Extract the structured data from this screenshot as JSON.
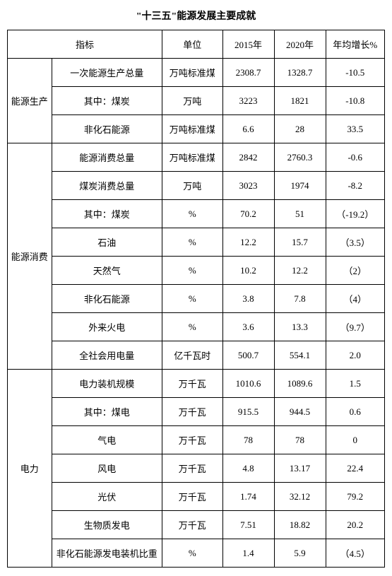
{
  "title": "\"十三五\"能源发展主要成就",
  "headers": {
    "indicator": "指标",
    "unit": "单位",
    "y2015": "2015年",
    "y2020": "2020年",
    "growth": "年均增长%"
  },
  "groups": [
    {
      "category": "能源生产",
      "rows": [
        {
          "indicator": "一次能源生产总量",
          "unit": "万吨标准煤",
          "y2015": "2308.7",
          "y2020": "1328.7",
          "growth": "-10.5"
        },
        {
          "indicator": "其中：煤炭",
          "unit": "万吨",
          "y2015": "3223",
          "y2020": "1821",
          "growth": "-10.8"
        },
        {
          "indicator": "非化石能源",
          "unit": "万吨标准煤",
          "y2015": "6.6",
          "y2020": "28",
          "growth": "33.5"
        }
      ]
    },
    {
      "category": "能源消费",
      "rows": [
        {
          "indicator": "能源消费总量",
          "unit": "万吨标准煤",
          "y2015": "2842",
          "y2020": "2760.3",
          "growth": "-0.6"
        },
        {
          "indicator": "煤炭消费总量",
          "unit": "万吨",
          "y2015": "3023",
          "y2020": "1974",
          "growth": "-8.2"
        },
        {
          "indicator": "其中：煤炭",
          "unit": "%",
          "y2015": "70.2",
          "y2020": "51",
          "growth": "（-19.2）"
        },
        {
          "indicator": "石油",
          "unit": "%",
          "y2015": "12.2",
          "y2020": "15.7",
          "growth": "（3.5）"
        },
        {
          "indicator": "天然气",
          "unit": "%",
          "y2015": "10.2",
          "y2020": "12.2",
          "growth": "（2）"
        },
        {
          "indicator": "非化石能源",
          "unit": "%",
          "y2015": "3.8",
          "y2020": "7.8",
          "growth": "（4）"
        },
        {
          "indicator": "外来火电",
          "unit": "%",
          "y2015": "3.6",
          "y2020": "13.3",
          "growth": "（9.7）"
        },
        {
          "indicator": "全社会用电量",
          "unit": "亿千瓦时",
          "y2015": "500.7",
          "y2020": "554.1",
          "growth": "2.0"
        }
      ]
    },
    {
      "category": "电力",
      "rows": [
        {
          "indicator": "电力装机规模",
          "unit": "万千瓦",
          "y2015": "1010.6",
          "y2020": "1089.6",
          "growth": "1.5"
        },
        {
          "indicator": "其中：煤电",
          "unit": "万千瓦",
          "y2015": "915.5",
          "y2020": "944.5",
          "growth": "0.6"
        },
        {
          "indicator": "气电",
          "unit": "万千瓦",
          "y2015": "78",
          "y2020": "78",
          "growth": "0"
        },
        {
          "indicator": "风电",
          "unit": "万千瓦",
          "y2015": "4.8",
          "y2020": "13.17",
          "growth": "22.4"
        },
        {
          "indicator": "光伏",
          "unit": "万千瓦",
          "y2015": "1.74",
          "y2020": "32.12",
          "growth": "79.2"
        },
        {
          "indicator": "生物质发电",
          "unit": "万千瓦",
          "y2015": "7.51",
          "y2020": "18.82",
          "growth": "20.2"
        },
        {
          "indicator": "非化石能源发电装机比重",
          "unit": "%",
          "y2015": "1.4",
          "y2020": "5.9",
          "growth": "（4.5）"
        }
      ]
    }
  ]
}
